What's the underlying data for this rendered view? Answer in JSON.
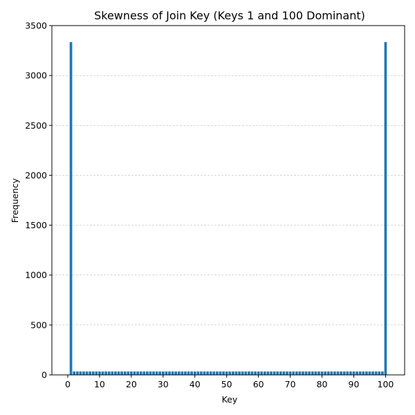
{
  "chart_data": {
    "type": "bar",
    "title": "Skewness of Join Key (Keys 1 and 100 Dominant)",
    "xlabel": "Key",
    "ylabel": "Frequency",
    "xlim": [
      -5,
      106
    ],
    "ylim": [
      0,
      3500
    ],
    "x_ticks": [
      0,
      10,
      20,
      30,
      40,
      50,
      60,
      70,
      80,
      90,
      100
    ],
    "y_ticks": [
      0,
      500,
      1000,
      1500,
      2000,
      2500,
      3000,
      3500
    ],
    "grid": "y-dashed",
    "bar_color": "#1f77b4",
    "bars": {
      "keys_from": 1,
      "keys_to": 100,
      "special": [
        {
          "key": 1,
          "value": 3335
        },
        {
          "key": 100,
          "value": 3335
        }
      ],
      "default_value": 34
    }
  }
}
